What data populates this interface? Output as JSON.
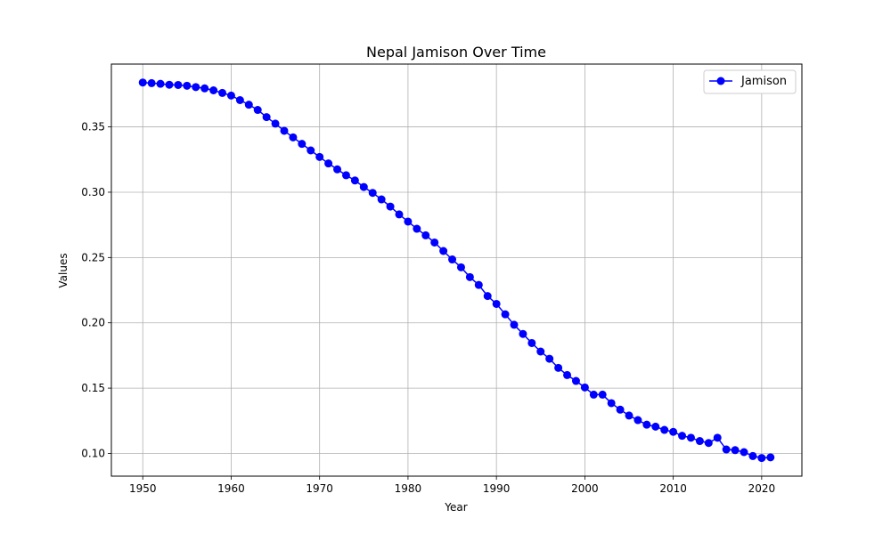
{
  "chart_data": {
    "type": "line",
    "title": "Nepal Jamison Over Time",
    "xlabel": "Year",
    "ylabel": "Values",
    "xlim": [
      1946.45,
      2024.55
    ],
    "ylim": [
      0.0826,
      0.3981
    ],
    "xticks": [
      1950,
      1960,
      1970,
      1980,
      1990,
      2000,
      2010,
      2020
    ],
    "xtick_labels": [
      "1950",
      "1960",
      "1970",
      "1980",
      "1990",
      "2000",
      "2010",
      "2020"
    ],
    "yticks": [
      0.1,
      0.15,
      0.2,
      0.25,
      0.3,
      0.35
    ],
    "ytick_labels": [
      "0.10",
      "0.15",
      "0.20",
      "0.25",
      "0.30",
      "0.35"
    ],
    "grid": true,
    "legend_position": "top-right",
    "series": [
      {
        "name": "Jamison",
        "color": "#0000ff",
        "marker": "circle",
        "x": [
          1950,
          1951,
          1952,
          1953,
          1954,
          1955,
          1956,
          1957,
          1958,
          1959,
          1960,
          1961,
          1962,
          1963,
          1964,
          1965,
          1966,
          1967,
          1968,
          1969,
          1970,
          1971,
          1972,
          1973,
          1974,
          1975,
          1976,
          1977,
          1978,
          1979,
          1980,
          1981,
          1982,
          1983,
          1984,
          1985,
          1986,
          1987,
          1988,
          1989,
          1990,
          1991,
          1992,
          1993,
          1994,
          1995,
          1996,
          1997,
          1998,
          1999,
          2000,
          2001,
          2002,
          2003,
          2004,
          2005,
          2006,
          2007,
          2008,
          2009,
          2010,
          2011,
          2012,
          2013,
          2014,
          2015,
          2016,
          2017,
          2018,
          2019,
          2020,
          2021
        ],
        "values": [
          0.384,
          0.3835,
          0.383,
          0.3823,
          0.3821,
          0.3815,
          0.3805,
          0.3795,
          0.378,
          0.376,
          0.374,
          0.3705,
          0.367,
          0.363,
          0.3575,
          0.3525,
          0.347,
          0.342,
          0.337,
          0.332,
          0.327,
          0.322,
          0.3175,
          0.313,
          0.309,
          0.304,
          0.2995,
          0.2945,
          0.289,
          0.283,
          0.2775,
          0.272,
          0.267,
          0.2615,
          0.255,
          0.2485,
          0.2425,
          0.235,
          0.229,
          0.2205,
          0.2145,
          0.2065,
          0.1985,
          0.1915,
          0.1845,
          0.178,
          0.1725,
          0.1655,
          0.16,
          0.1555,
          0.1505,
          0.145,
          0.145,
          0.1385,
          0.1335,
          0.129,
          0.1255,
          0.122,
          0.1205,
          0.118,
          0.1165,
          0.1135,
          0.112,
          0.1095,
          0.108,
          0.112,
          0.103,
          0.1025,
          0.101,
          0.098,
          0.0965,
          0.097
        ]
      }
    ]
  }
}
